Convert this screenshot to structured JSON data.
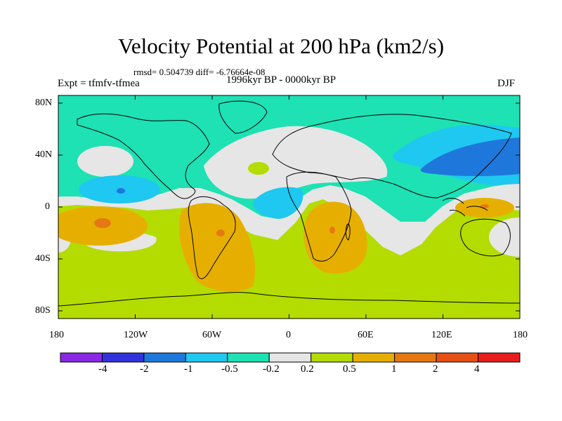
{
  "title": "Velocity Potential at 200 hPa (km2/s)",
  "stats": "rmsd= 0.504739 diff= -6.76664e-08",
  "experiment": "Expt = tfmfv-tfmea",
  "period": "1996kyr BP - 0000kyr BP",
  "season": "DJF",
  "lat_labels": [
    "80N",
    "40N",
    "0",
    "40S",
    "80S"
  ],
  "lon_labels": [
    "180",
    "120W",
    "60W",
    "0",
    "60E",
    "120E",
    "180"
  ],
  "colorbar": {
    "labels": [
      "-4",
      "-2",
      "-1",
      "-0.5",
      "-0.2",
      "0.2",
      "0.5",
      "1",
      "2",
      "4"
    ],
    "colors": [
      "#8a28e6",
      "#3232dc",
      "#1e78dc",
      "#1ec8f0",
      "#1ee1b4",
      "#e6e6e6",
      "#b4dc00",
      "#e6af00",
      "#e67814",
      "#e65014",
      "#e61e1e"
    ]
  }
}
